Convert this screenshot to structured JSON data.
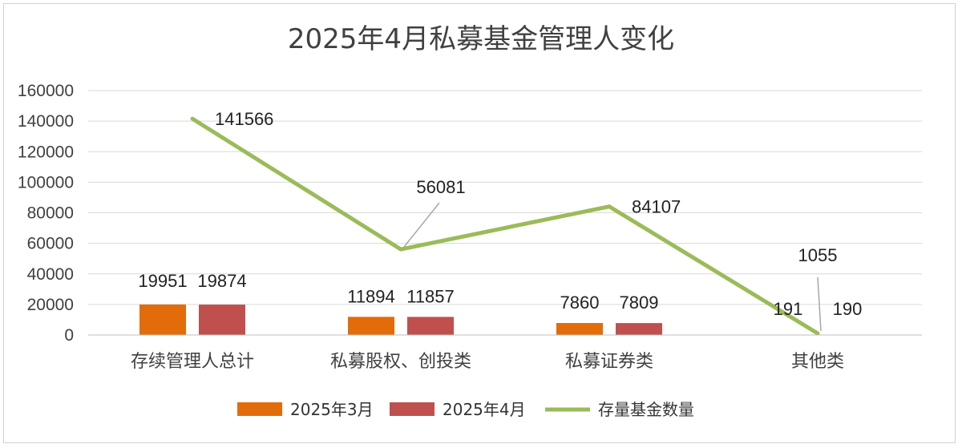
{
  "chart_data": {
    "type": "bar",
    "title": "2025年4月私募基金管理人变化",
    "categories": [
      "存续管理人总计",
      "私募股权、创投类",
      "私募证券类",
      "其他类"
    ],
    "ylim": [
      0,
      160000
    ],
    "yticks": [
      0,
      20000,
      40000,
      60000,
      80000,
      100000,
      120000,
      140000,
      160000
    ],
    "grid": true,
    "legend_position": "bottom",
    "series": [
      {
        "name": "2025年3月",
        "type": "bar",
        "color": "#E36C0A",
        "values": [
          19951,
          11894,
          7860,
          191
        ]
      },
      {
        "name": "2025年4月",
        "type": "bar",
        "color": "#C0504D",
        "values": [
          19874,
          11857,
          7809,
          190
        ]
      },
      {
        "name": "存量基金数量",
        "type": "line",
        "color": "#9BBB59",
        "values": [
          141566,
          56081,
          84107,
          1055
        ]
      }
    ]
  }
}
